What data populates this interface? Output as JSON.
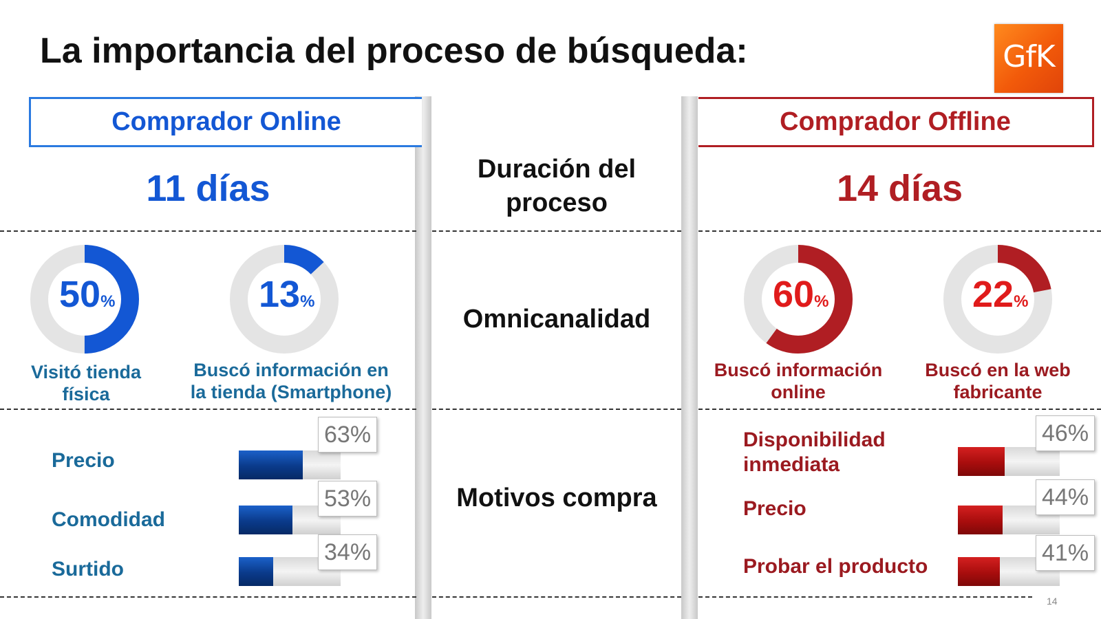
{
  "title": "La importancia del proceso de búsqueda:",
  "logo_text": "GfK",
  "page_number": "14",
  "colors": {
    "online": "#1357d4",
    "offline": "#b01e23",
    "online_text": "#1a6a9a",
    "offline_text": "#9b1a20"
  },
  "online": {
    "header": "Comprador Online",
    "duration": "11 días",
    "donuts": [
      {
        "value": "50",
        "pct_sign": "%",
        "fraction": 0.5,
        "label_line1": "Visitó tienda",
        "label_line2": "física"
      },
      {
        "value": "13",
        "pct_sign": "%",
        "fraction": 0.13,
        "label_line1": "Buscó información en",
        "label_line2": "la tienda  (Smartphone)"
      }
    ],
    "reasons": [
      {
        "label": "Precio",
        "value": "63%",
        "fraction": 0.63
      },
      {
        "label": "Comodidad",
        "value": "53%",
        "fraction": 0.53
      },
      {
        "label": "Surtido",
        "value": "34%",
        "fraction": 0.34
      }
    ]
  },
  "center": {
    "duration_line1": "Duración del",
    "duration_line2": "proceso",
    "omni": "Omnicanalidad",
    "motives": "Motivos compra"
  },
  "offline": {
    "header": "Comprador Offline",
    "duration": "14 días",
    "donuts": [
      {
        "value": "60",
        "pct_sign": "%",
        "fraction": 0.6,
        "label_line1": "Buscó información",
        "label_line2": "online"
      },
      {
        "value": "22",
        "pct_sign": "%",
        "fraction": 0.22,
        "label_line1": "Buscó en la web",
        "label_line2": "fabricante"
      }
    ],
    "reasons": [
      {
        "label_line1": "Disponibilidad",
        "label_line2": "inmediata",
        "value": "46%",
        "fraction": 0.46
      },
      {
        "label_line1": "Precio",
        "label_line2": "",
        "value": "44%",
        "fraction": 0.44
      },
      {
        "label_line1": "Probar el producto",
        "label_line2": "",
        "value": "41%",
        "fraction": 0.41
      }
    ]
  }
}
